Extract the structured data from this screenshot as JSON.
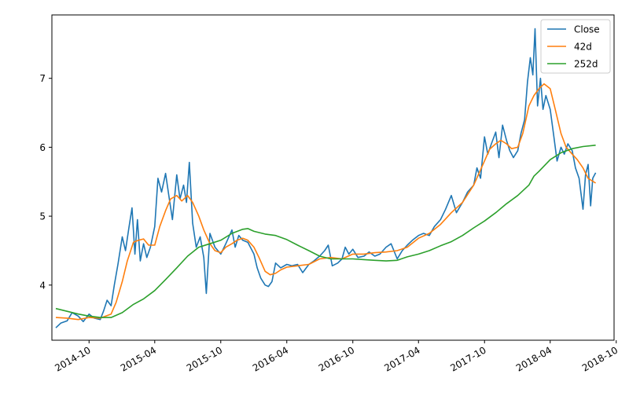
{
  "chart_data": {
    "type": "line",
    "title": "",
    "xlabel": "",
    "ylabel": "",
    "x_ticks": [
      "2014-10",
      "2015-04",
      "2015-10",
      "2016-04",
      "2016-10",
      "2017-04",
      "2017-10",
      "2018-04",
      "2018-10"
    ],
    "y_ticks": [
      "4",
      "5",
      "6",
      "7"
    ],
    "xlim": [
      "2014-06-20",
      "2018-09-25"
    ],
    "ylim": [
      3.2,
      7.92
    ],
    "grid": false,
    "legend_position": "top-right",
    "series": [
      {
        "name": "Close",
        "color": "#1f77b4",
        "points": [
          [
            "2014-07-01",
            3.38
          ],
          [
            "2014-07-15",
            3.45
          ],
          [
            "2014-08-01",
            3.48
          ],
          [
            "2014-08-15",
            3.6
          ],
          [
            "2014-09-01",
            3.55
          ],
          [
            "2014-09-15",
            3.47
          ],
          [
            "2014-10-01",
            3.58
          ],
          [
            "2014-10-15",
            3.52
          ],
          [
            "2014-11-01",
            3.5
          ],
          [
            "2014-11-10",
            3.62
          ],
          [
            "2014-11-20",
            3.78
          ],
          [
            "2014-12-01",
            3.7
          ],
          [
            "2014-12-10",
            4.0
          ],
          [
            "2014-12-20",
            4.3
          ],
          [
            "2015-01-01",
            4.7
          ],
          [
            "2015-01-10",
            4.5
          ],
          [
            "2015-01-20",
            4.85
          ],
          [
            "2015-01-28",
            5.12
          ],
          [
            "2015-02-05",
            4.45
          ],
          [
            "2015-02-12",
            4.95
          ],
          [
            "2015-02-20",
            4.35
          ],
          [
            "2015-03-01",
            4.6
          ],
          [
            "2015-03-10",
            4.4
          ],
          [
            "2015-03-20",
            4.55
          ],
          [
            "2015-04-01",
            4.85
          ],
          [
            "2015-04-10",
            5.55
          ],
          [
            "2015-04-20",
            5.35
          ],
          [
            "2015-05-01",
            5.62
          ],
          [
            "2015-05-10",
            5.3
          ],
          [
            "2015-05-20",
            4.95
          ],
          [
            "2015-06-01",
            5.6
          ],
          [
            "2015-06-10",
            5.25
          ],
          [
            "2015-06-20",
            5.45
          ],
          [
            "2015-06-28",
            5.2
          ],
          [
            "2015-07-06",
            5.78
          ],
          [
            "2015-07-15",
            4.9
          ],
          [
            "2015-07-25",
            4.55
          ],
          [
            "2015-08-05",
            4.7
          ],
          [
            "2015-08-15",
            4.4
          ],
          [
            "2015-08-22",
            3.88
          ],
          [
            "2015-09-01",
            4.75
          ],
          [
            "2015-09-15",
            4.55
          ],
          [
            "2015-10-01",
            4.45
          ],
          [
            "2015-10-15",
            4.6
          ],
          [
            "2015-11-01",
            4.8
          ],
          [
            "2015-11-10",
            4.55
          ],
          [
            "2015-11-20",
            4.72
          ],
          [
            "2015-12-01",
            4.65
          ],
          [
            "2015-12-15",
            4.62
          ],
          [
            "2016-01-01",
            4.45
          ],
          [
            "2016-01-10",
            4.25
          ],
          [
            "2016-01-20",
            4.1
          ],
          [
            "2016-02-01",
            4.0
          ],
          [
            "2016-02-10",
            3.98
          ],
          [
            "2016-02-20",
            4.05
          ],
          [
            "2016-03-01",
            4.32
          ],
          [
            "2016-03-15",
            4.25
          ],
          [
            "2016-04-01",
            4.3
          ],
          [
            "2016-04-15",
            4.28
          ],
          [
            "2016-05-01",
            4.3
          ],
          [
            "2016-05-15",
            4.18
          ],
          [
            "2016-06-01",
            4.3
          ],
          [
            "2016-06-15",
            4.35
          ],
          [
            "2016-07-01",
            4.42
          ],
          [
            "2016-07-15",
            4.5
          ],
          [
            "2016-07-25",
            4.58
          ],
          [
            "2016-08-05",
            4.28
          ],
          [
            "2016-08-20",
            4.32
          ],
          [
            "2016-09-01",
            4.38
          ],
          [
            "2016-09-10",
            4.55
          ],
          [
            "2016-09-20",
            4.45
          ],
          [
            "2016-10-01",
            4.52
          ],
          [
            "2016-10-15",
            4.4
          ],
          [
            "2016-11-01",
            4.42
          ],
          [
            "2016-11-15",
            4.48
          ],
          [
            "2016-12-01",
            4.42
          ],
          [
            "2016-12-15",
            4.45
          ],
          [
            "2017-01-01",
            4.55
          ],
          [
            "2017-01-15",
            4.6
          ],
          [
            "2017-02-01",
            4.38
          ],
          [
            "2017-02-15",
            4.5
          ],
          [
            "2017-03-01",
            4.58
          ],
          [
            "2017-03-15",
            4.65
          ],
          [
            "2017-04-01",
            4.72
          ],
          [
            "2017-04-15",
            4.75
          ],
          [
            "2017-05-01",
            4.72
          ],
          [
            "2017-05-15",
            4.85
          ],
          [
            "2017-06-01",
            4.95
          ],
          [
            "2017-06-15",
            5.1
          ],
          [
            "2017-07-01",
            5.3
          ],
          [
            "2017-07-15",
            5.05
          ],
          [
            "2017-08-01",
            5.2
          ],
          [
            "2017-08-15",
            5.35
          ],
          [
            "2017-09-01",
            5.45
          ],
          [
            "2017-09-10",
            5.7
          ],
          [
            "2017-09-20",
            5.55
          ],
          [
            "2017-10-01",
            6.15
          ],
          [
            "2017-10-10",
            5.9
          ],
          [
            "2017-10-20",
            6.05
          ],
          [
            "2017-11-01",
            6.22
          ],
          [
            "2017-11-10",
            5.85
          ],
          [
            "2017-11-20",
            6.32
          ],
          [
            "2017-12-01",
            6.1
          ],
          [
            "2017-12-10",
            5.95
          ],
          [
            "2017-12-20",
            5.85
          ],
          [
            "2018-01-01",
            5.95
          ],
          [
            "2018-01-10",
            6.2
          ],
          [
            "2018-01-20",
            6.4
          ],
          [
            "2018-01-28",
            6.95
          ],
          [
            "2018-02-05",
            7.3
          ],
          [
            "2018-02-12",
            7.05
          ],
          [
            "2018-02-18",
            7.72
          ],
          [
            "2018-02-25",
            6.6
          ],
          [
            "2018-03-05",
            7.0
          ],
          [
            "2018-03-12",
            6.55
          ],
          [
            "2018-03-20",
            6.75
          ],
          [
            "2018-04-01",
            6.55
          ],
          [
            "2018-04-10",
            6.2
          ],
          [
            "2018-04-20",
            5.8
          ],
          [
            "2018-05-01",
            6.0
          ],
          [
            "2018-05-10",
            5.9
          ],
          [
            "2018-05-20",
            6.05
          ],
          [
            "2018-06-01",
            5.95
          ],
          [
            "2018-06-10",
            5.7
          ],
          [
            "2018-06-20",
            5.55
          ],
          [
            "2018-07-01",
            5.1
          ],
          [
            "2018-07-08",
            5.6
          ],
          [
            "2018-07-15",
            5.75
          ],
          [
            "2018-07-22",
            5.15
          ],
          [
            "2018-07-28",
            5.55
          ],
          [
            "2018-08-05",
            5.63
          ]
        ]
      },
      {
        "name": "42d",
        "color": "#ff7f0e",
        "points": [
          [
            "2014-07-01",
            3.53
          ],
          [
            "2014-08-01",
            3.52
          ],
          [
            "2014-09-01",
            3.5
          ],
          [
            "2014-10-01",
            3.53
          ],
          [
            "2014-11-01",
            3.52
          ],
          [
            "2014-12-01",
            3.58
          ],
          [
            "2014-12-15",
            3.75
          ],
          [
            "2015-01-01",
            4.05
          ],
          [
            "2015-01-15",
            4.35
          ],
          [
            "2015-02-01",
            4.62
          ],
          [
            "2015-02-15",
            4.65
          ],
          [
            "2015-03-01",
            4.67
          ],
          [
            "2015-03-15",
            4.58
          ],
          [
            "2015-04-01",
            4.58
          ],
          [
            "2015-04-15",
            4.85
          ],
          [
            "2015-05-01",
            5.08
          ],
          [
            "2015-05-15",
            5.25
          ],
          [
            "2015-06-01",
            5.3
          ],
          [
            "2015-06-15",
            5.22
          ],
          [
            "2015-07-01",
            5.3
          ],
          [
            "2015-07-15",
            5.2
          ],
          [
            "2015-08-01",
            5.0
          ],
          [
            "2015-08-15",
            4.8
          ],
          [
            "2015-09-01",
            4.6
          ],
          [
            "2015-09-15",
            4.5
          ],
          [
            "2015-10-01",
            4.47
          ],
          [
            "2015-10-15",
            4.55
          ],
          [
            "2015-11-01",
            4.6
          ],
          [
            "2015-11-15",
            4.65
          ],
          [
            "2015-12-01",
            4.68
          ],
          [
            "2015-12-15",
            4.65
          ],
          [
            "2016-01-01",
            4.55
          ],
          [
            "2016-01-15",
            4.4
          ],
          [
            "2016-02-01",
            4.2
          ],
          [
            "2016-02-15",
            4.15
          ],
          [
            "2016-03-01",
            4.17
          ],
          [
            "2016-03-15",
            4.22
          ],
          [
            "2016-04-01",
            4.26
          ],
          [
            "2016-05-01",
            4.28
          ],
          [
            "2016-06-01",
            4.3
          ],
          [
            "2016-07-01",
            4.38
          ],
          [
            "2016-08-01",
            4.4
          ],
          [
            "2016-09-01",
            4.38
          ],
          [
            "2016-10-01",
            4.45
          ],
          [
            "2016-11-01",
            4.45
          ],
          [
            "2016-12-01",
            4.47
          ],
          [
            "2017-01-01",
            4.48
          ],
          [
            "2017-02-01",
            4.5
          ],
          [
            "2017-03-01",
            4.55
          ],
          [
            "2017-04-01",
            4.68
          ],
          [
            "2017-05-01",
            4.75
          ],
          [
            "2017-06-01",
            4.88
          ],
          [
            "2017-07-01",
            5.05
          ],
          [
            "2017-08-01",
            5.2
          ],
          [
            "2017-09-01",
            5.45
          ],
          [
            "2017-10-01",
            5.8
          ],
          [
            "2017-10-15",
            5.97
          ],
          [
            "2017-11-01",
            6.05
          ],
          [
            "2017-11-15",
            6.1
          ],
          [
            "2017-12-01",
            6.05
          ],
          [
            "2017-12-15",
            5.98
          ],
          [
            "2018-01-01",
            6.0
          ],
          [
            "2018-01-15",
            6.2
          ],
          [
            "2018-02-01",
            6.6
          ],
          [
            "2018-02-15",
            6.75
          ],
          [
            "2018-03-01",
            6.85
          ],
          [
            "2018-03-15",
            6.92
          ],
          [
            "2018-04-01",
            6.85
          ],
          [
            "2018-04-15",
            6.55
          ],
          [
            "2018-05-01",
            6.2
          ],
          [
            "2018-05-15",
            6.0
          ],
          [
            "2018-06-01",
            5.9
          ],
          [
            "2018-06-15",
            5.82
          ],
          [
            "2018-07-01",
            5.7
          ],
          [
            "2018-07-15",
            5.55
          ],
          [
            "2018-08-05",
            5.48
          ]
        ]
      },
      {
        "name": "252d",
        "color": "#2ca02c",
        "points": [
          [
            "2014-07-01",
            3.66
          ],
          [
            "2014-08-01",
            3.62
          ],
          [
            "2014-09-01",
            3.58
          ],
          [
            "2014-10-01",
            3.55
          ],
          [
            "2014-11-01",
            3.53
          ],
          [
            "2014-12-01",
            3.53
          ],
          [
            "2015-01-01",
            3.6
          ],
          [
            "2015-02-01",
            3.72
          ],
          [
            "2015-03-01",
            3.8
          ],
          [
            "2015-04-01",
            3.92
          ],
          [
            "2015-05-01",
            4.08
          ],
          [
            "2015-06-01",
            4.25
          ],
          [
            "2015-07-01",
            4.42
          ],
          [
            "2015-08-01",
            4.55
          ],
          [
            "2015-09-01",
            4.6
          ],
          [
            "2015-10-01",
            4.65
          ],
          [
            "2015-11-01",
            4.75
          ],
          [
            "2015-12-01",
            4.81
          ],
          [
            "2015-12-15",
            4.82
          ],
          [
            "2016-01-01",
            4.78
          ],
          [
            "2016-02-01",
            4.74
          ],
          [
            "2016-03-01",
            4.72
          ],
          [
            "2016-04-01",
            4.66
          ],
          [
            "2016-05-01",
            4.58
          ],
          [
            "2016-06-01",
            4.5
          ],
          [
            "2016-07-01",
            4.42
          ],
          [
            "2016-08-01",
            4.38
          ],
          [
            "2016-09-01",
            4.38
          ],
          [
            "2016-10-01",
            4.38
          ],
          [
            "2016-11-01",
            4.37
          ],
          [
            "2016-12-01",
            4.36
          ],
          [
            "2017-01-01",
            4.35
          ],
          [
            "2017-02-01",
            4.36
          ],
          [
            "2017-03-01",
            4.41
          ],
          [
            "2017-04-01",
            4.45
          ],
          [
            "2017-05-01",
            4.5
          ],
          [
            "2017-06-01",
            4.57
          ],
          [
            "2017-07-01",
            4.63
          ],
          [
            "2017-08-01",
            4.72
          ],
          [
            "2017-09-01",
            4.83
          ],
          [
            "2017-10-01",
            4.93
          ],
          [
            "2017-11-01",
            5.05
          ],
          [
            "2017-12-01",
            5.18
          ],
          [
            "2018-01-01",
            5.3
          ],
          [
            "2018-02-01",
            5.45
          ],
          [
            "2018-02-15",
            5.58
          ],
          [
            "2018-03-01",
            5.65
          ],
          [
            "2018-04-01",
            5.82
          ],
          [
            "2018-05-01",
            5.92
          ],
          [
            "2018-06-01",
            5.98
          ],
          [
            "2018-07-01",
            6.01
          ],
          [
            "2018-08-05",
            6.03
          ]
        ]
      }
    ]
  }
}
